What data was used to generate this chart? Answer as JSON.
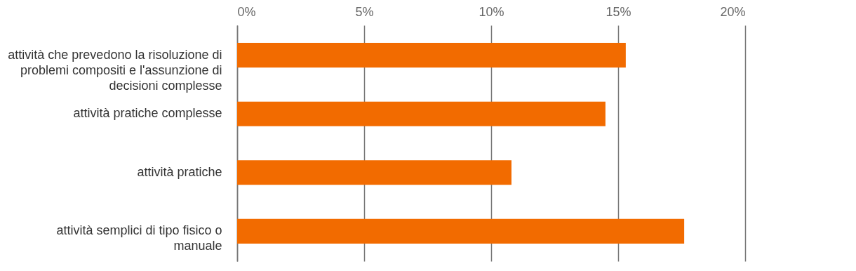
{
  "chart_data": {
    "type": "bar",
    "orientation": "horizontal",
    "categories": [
      "attività che prevedono la risoluzione di problemi compositi e l'assunzione di decisioni complesse",
      "attività pratiche complesse",
      "attività pratiche",
      "attività semplici di tipo fisico o manuale"
    ],
    "values": [
      15.3,
      14.5,
      10.8,
      17.6
    ],
    "color": "#f26b00",
    "xlim": [
      0,
      20
    ],
    "xticks": [
      {
        "value": 0,
        "label": "0%"
      },
      {
        "value": 5,
        "label": "5%"
      },
      {
        "value": 10,
        "label": "10%"
      },
      {
        "value": 15,
        "label": "15%"
      },
      {
        "value": 20,
        "label": "20%"
      }
    ],
    "grid": "x"
  }
}
